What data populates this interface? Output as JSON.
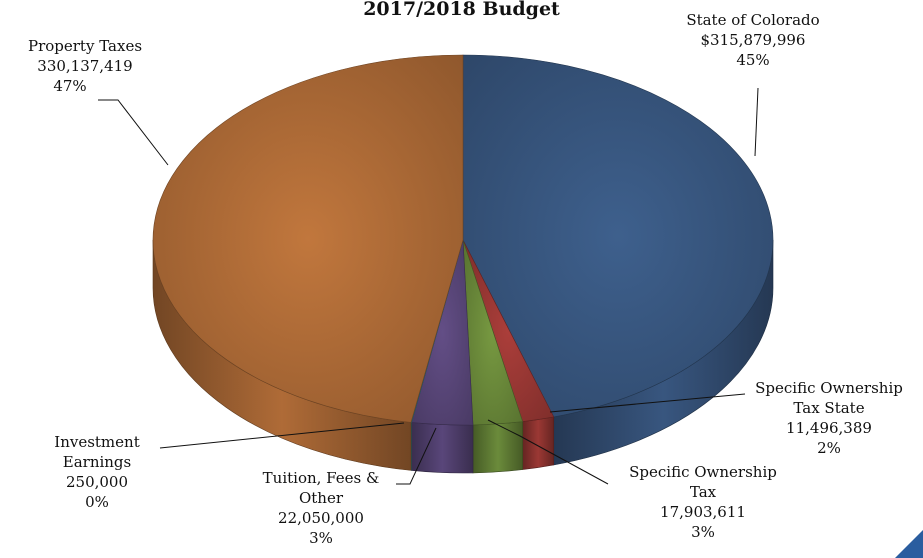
{
  "chart_data": {
    "type": "pie",
    "title": "2017/2018 Budget",
    "slices": [
      {
        "name": "State of Colorado",
        "value": 315879996,
        "value_label": "$315,879,996",
        "percent_label": "45%",
        "color": "#3b5b86"
      },
      {
        "name": "Specific Ownership Tax State",
        "value": 11496389,
        "value_label": "11,496,389",
        "percent_label": "2%",
        "color": "#a33b37"
      },
      {
        "name": "Specific Ownership Tax",
        "value": 17903611,
        "value_label": "17,903,611",
        "percent_label": "3%",
        "color": "#71923e"
      },
      {
        "name": "Tuition, Fees & Other",
        "value": 22050000,
        "value_label": "22,050,000",
        "percent_label": "3%",
        "color": "#5e4a80"
      },
      {
        "name": "Investment Earnings",
        "value": 250000,
        "value_label": "250,000",
        "percent_label": "0%",
        "color": "#3a8ea3"
      },
      {
        "name": "Property Taxes",
        "value": 330137419,
        "value_label": "330,137,419",
        "percent_label": "47%",
        "color": "#b8713a"
      }
    ],
    "legend": "none",
    "style": "3d-exploded-none"
  },
  "labels": {
    "state_line1": "State of Colorado",
    "sot_state_line1": "Specific Ownership",
    "sot_state_line2": "Tax State",
    "sot_line1": "Specific Ownership",
    "sot_line2": "Tax",
    "tuition_line1": "Tuition, Fees &",
    "tuition_line2": "Other",
    "investment_line1": "Investment",
    "investment_line2": "Earnings",
    "property_line1": "Property Taxes"
  }
}
